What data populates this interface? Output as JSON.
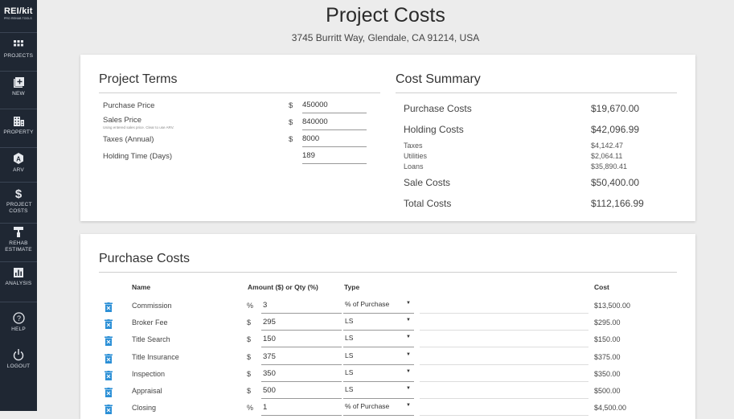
{
  "app": {
    "logo_title": "REI/kit",
    "logo_subtitle": "PRO REHAB TOOLS"
  },
  "sidebar": {
    "items": [
      {
        "label": "PROJECTS",
        "icon": "grid-icon"
      },
      {
        "label": "NEW",
        "icon": "add-box-icon"
      },
      {
        "label": "PROPERTY",
        "icon": "building-icon"
      },
      {
        "label": "ARV",
        "icon": "arv-icon"
      },
      {
        "label": "PROJECT COSTS",
        "icon": "dollar-icon"
      },
      {
        "label": "REHAB ESTIMATE",
        "icon": "paint-roller-icon"
      },
      {
        "label": "ANALYSIS",
        "icon": "chart-icon"
      },
      {
        "label": "HELP",
        "icon": "help-icon"
      },
      {
        "label": "LOGOUT",
        "icon": "power-icon"
      }
    ]
  },
  "header": {
    "title": "Project Costs",
    "address": "3745 Burritt Way, Glendale, CA 91214, USA"
  },
  "project_terms": {
    "title": "Project Terms",
    "purchase_price": {
      "label": "Purchase Price",
      "currency": "$",
      "value": "450000"
    },
    "sales_price": {
      "label": "Sales Price",
      "hint": "Using entered sales price. Clear to use ARV.",
      "currency": "$",
      "value": "840000"
    },
    "taxes": {
      "label": "Taxes (Annual)",
      "currency": "$",
      "value": "8000"
    },
    "holding_time": {
      "label": "Holding Time (Days)",
      "value": "189"
    }
  },
  "cost_summary": {
    "title": "Cost Summary",
    "purchase_costs": {
      "label": "Purchase Costs",
      "value": "$19,670.00"
    },
    "holding_costs": {
      "label": "Holding Costs",
      "value": "$42,096.99"
    },
    "taxes": {
      "label": "Taxes",
      "value": "$4,142.47"
    },
    "utilities": {
      "label": "Utilities",
      "value": "$2,064.11"
    },
    "loans": {
      "label": "Loans",
      "value": "$35,890.41"
    },
    "sale_costs": {
      "label": "Sale Costs",
      "value": "$50,400.00"
    },
    "total_costs": {
      "label": "Total Costs",
      "value": "$112,166.99"
    }
  },
  "purchase_costs": {
    "title": "Purchase Costs",
    "columns": {
      "name": "Name",
      "amount": "Amount ($) or Qty (%)",
      "type": "Type",
      "cost": "Cost"
    },
    "rows": [
      {
        "name": "Commission",
        "unit": "%",
        "amount": "3",
        "type": "% of Purchase",
        "cost": "$13,500.00"
      },
      {
        "name": "Broker Fee",
        "unit": "$",
        "amount": "295",
        "type": "LS",
        "cost": "$295.00"
      },
      {
        "name": "Title Search",
        "unit": "$",
        "amount": "150",
        "type": "LS",
        "cost": "$150.00"
      },
      {
        "name": "Title Insurance",
        "unit": "$",
        "amount": "375",
        "type": "LS",
        "cost": "$375.00"
      },
      {
        "name": "Inspection",
        "unit": "$",
        "amount": "350",
        "type": "LS",
        "cost": "$350.00"
      },
      {
        "name": "Appraisal",
        "unit": "$",
        "amount": "500",
        "type": "LS",
        "cost": "$500.00"
      },
      {
        "name": "Closing",
        "unit": "%",
        "amount": "1",
        "type": "% of Purchase",
        "cost": "$4,500.00"
      }
    ]
  },
  "colors": {
    "sidebar_bg": "#1f2733",
    "page_bg": "#ececec",
    "accent_blue": "#2b8fd6"
  }
}
